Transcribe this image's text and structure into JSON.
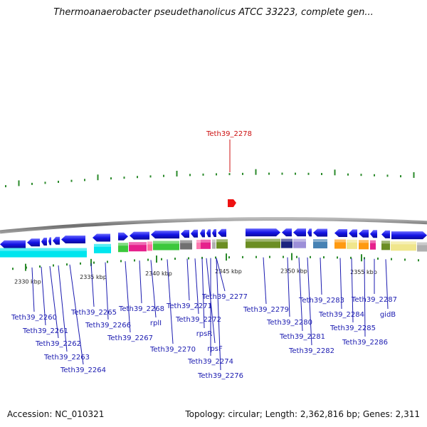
{
  "title": "Thermoanaerobacter pseudethanolicus ATCC 33223, complete gen...",
  "footer": {
    "accession": "Accession: NC_010321",
    "summary": "Topology: circular; Length: 2,362,816 bp; Genes: 2,311"
  },
  "highlight": {
    "label": "Teth39_2278",
    "color": "#cc1111"
  },
  "kbp_ticks": [
    "2330 kbp",
    "2335 kbp",
    "2340 kbp",
    "2345 kbp",
    "2350 kbp",
    "2355 kbp"
  ],
  "gene_labels": [
    "Teth39_2260",
    "Teth39_2261",
    "Teth39_2262",
    "Teth39_2263",
    "Teth39_2264",
    "Teth39_2265",
    "Teth39_2266",
    "Teth39_2267",
    "Teth39_2268",
    "rplI",
    "Teth39_2270",
    "Teth39_2271",
    "Teth39_2272",
    "rpsR",
    "rpsF",
    "Teth39_2274",
    "Teth39_2276",
    "Teth39_2277",
    "Teth39_2279",
    "Teth39_2280",
    "Teth39_2281",
    "Teth39_2282",
    "Teth39_2283",
    "Teth39_2284",
    "Teth39_2285",
    "Teth39_2286",
    "Teth39_2287",
    "gidB"
  ],
  "colors": {
    "gene_blue": "#1414e6",
    "cyan": "#00e5ee",
    "green": "#3cc83c",
    "magenta": "#e6208c",
    "olive": "#6b8e23",
    "navy": "#1a237e",
    "lavender": "#9c8fd8",
    "steel": "#4682b4",
    "orange": "#ff9a10",
    "khaki": "#f0e68c",
    "label_blue": "#1a1ab0",
    "backbone": "#7a7a7a"
  }
}
